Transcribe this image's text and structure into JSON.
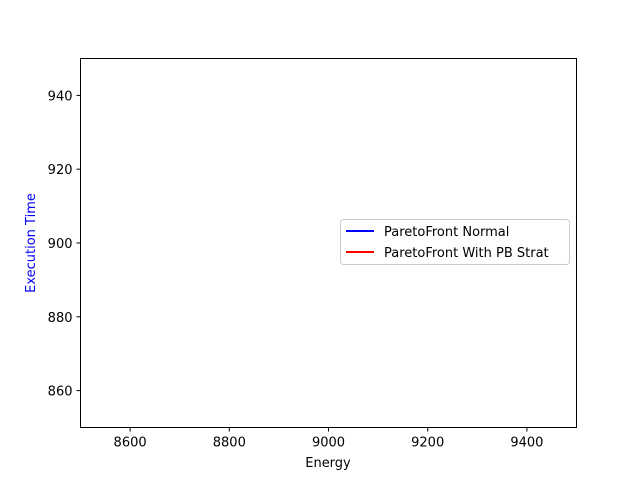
{
  "chart_data": {
    "type": "line",
    "title": "",
    "xlabel": "Energy",
    "ylabel": "Execution Time",
    "ylabel_color": "#0000ff",
    "xlim": [
      8500,
      9500
    ],
    "ylim": [
      850,
      950
    ],
    "xticks": [
      8600,
      8800,
      9000,
      9200,
      9400
    ],
    "yticks": [
      860,
      880,
      900,
      920,
      940
    ],
    "grid": false,
    "legend_position": "center-right",
    "series": [
      {
        "name": "ParetoFront Normal",
        "color": "#0000ff",
        "x": [],
        "y": []
      },
      {
        "name": "ParetoFront With PB Strat",
        "color": "#ff0000",
        "x": [],
        "y": []
      }
    ]
  }
}
